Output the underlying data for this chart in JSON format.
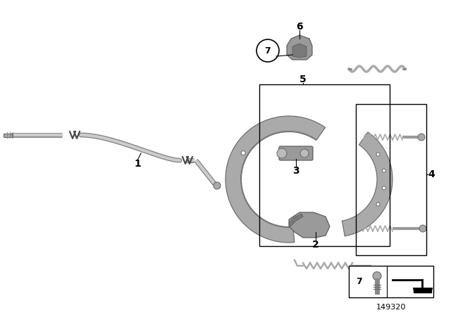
{
  "bg_color": "#ffffff",
  "fig_width": 6.4,
  "fig_height": 4.48,
  "dpi": 100,
  "part_number": "149320",
  "part_color_light": "#b0b0b0",
  "part_color_mid": "#909090",
  "part_color_dark": "#606060",
  "line_color": "#000000",
  "text_color": "#000000",
  "shoe_color": "#9a9a9a"
}
